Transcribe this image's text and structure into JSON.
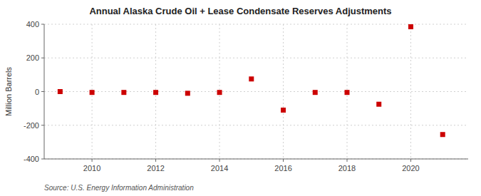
{
  "chart_data": {
    "type": "scatter",
    "title": "Annual Alaska Crude Oil + Lease Condensate Reserves Adjustments",
    "ylabel": "Million Barrels",
    "source": "Source: U.S. Energy Information Administration",
    "x": [
      2009,
      2010,
      2011,
      2012,
      2013,
      2014,
      2015,
      2016,
      2017,
      2018,
      2019,
      2020,
      2021
    ],
    "values": [
      0,
      -5,
      -5,
      -5,
      -10,
      -5,
      75,
      -110,
      -5,
      -5,
      -75,
      385,
      -255
    ],
    "color": "#cc0000",
    "marker": "square",
    "xlim": [
      2008.5,
      2021.8
    ],
    "xticks": [
      2010,
      2012,
      2014,
      2016,
      2018,
      2020
    ],
    "ylim": [
      -400,
      400
    ],
    "yticks": [
      -400,
      -200,
      0,
      200,
      400
    ],
    "grid": true
  }
}
